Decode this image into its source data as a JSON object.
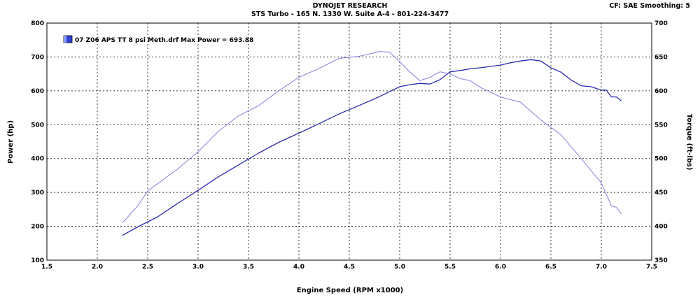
{
  "header": {
    "title": "DYNOJET RESEARCH",
    "subtitle": "STS Turbo - 165 N. 1330 W. Suite A-4 - 801-224-3477",
    "cf_info": "CF: SAE  Smoothing: 5"
  },
  "chart_data": {
    "type": "line",
    "xlabel": "Engine Speed (RPM x1000)",
    "ylabel_left": "Power (hp)",
    "ylabel_right": "Torque (ft-lbs)",
    "xlim": [
      1.5,
      7.5
    ],
    "ylim_left": [
      100,
      800
    ],
    "ylim_right": [
      350,
      700
    ],
    "x_ticks": [
      "1.5",
      "2.0",
      "2.5",
      "3.0",
      "3.5",
      "4.0",
      "4.5",
      "5.0",
      "5.5",
      "6.0",
      "6.5",
      "7.0",
      "7.5"
    ],
    "y_ticks_left": [
      "100",
      "200",
      "300",
      "400",
      "500",
      "600",
      "700",
      "800"
    ],
    "y_ticks_right": [
      "350",
      "400",
      "450",
      "500",
      "550",
      "600",
      "650",
      "700"
    ],
    "grid": true,
    "legend": {
      "position": "top-left",
      "label": "07 Z06 APS TT 8 psi Meth.drf Max Power = 693.88",
      "swatch_color": "#2f3fd0"
    },
    "series": [
      {
        "role": "power",
        "axis": "left",
        "color": "#2a2ab0",
        "x": [
          2.25,
          2.4,
          2.6,
          2.8,
          3.0,
          3.2,
          3.4,
          3.6,
          3.8,
          4.0,
          4.2,
          4.4,
          4.6,
          4.8,
          5.0,
          5.1,
          5.2,
          5.3,
          5.4,
          5.5,
          5.6,
          5.7,
          5.8,
          6.0,
          6.1,
          6.2,
          6.3,
          6.4,
          6.5,
          6.6,
          6.7,
          6.8,
          6.9,
          7.0,
          7.05,
          7.1,
          7.15,
          7.2
        ],
        "y": [
          173,
          198,
          228,
          268,
          306,
          346,
          381,
          416,
          448,
          475,
          503,
          532,
          557,
          583,
          612,
          618,
          622,
          620,
          633,
          656,
          660,
          665,
          668,
          676,
          683,
          688,
          692,
          688,
          668,
          655,
          632,
          615,
          612,
          602,
          602,
          582,
          582,
          570
        ]
      },
      {
        "role": "torque",
        "axis": "right",
        "color": "#8a8ae0",
        "x": [
          2.25,
          2.4,
          2.5,
          2.6,
          2.8,
          3.0,
          3.2,
          3.4,
          3.6,
          3.8,
          4.0,
          4.2,
          4.4,
          4.6,
          4.8,
          4.9,
          5.0,
          5.1,
          5.2,
          5.3,
          5.4,
          5.5,
          5.6,
          5.7,
          5.8,
          6.0,
          6.2,
          6.4,
          6.6,
          6.8,
          7.0,
          7.1,
          7.15,
          7.2
        ],
        "y": [
          405,
          430,
          452,
          463,
          485,
          510,
          540,
          563,
          578,
          600,
          620,
          633,
          648,
          651,
          658,
          657,
          643,
          628,
          615,
          620,
          628,
          625,
          618,
          615,
          605,
          591,
          583,
          557,
          535,
          500,
          464,
          430,
          428,
          418
        ]
      }
    ]
  }
}
